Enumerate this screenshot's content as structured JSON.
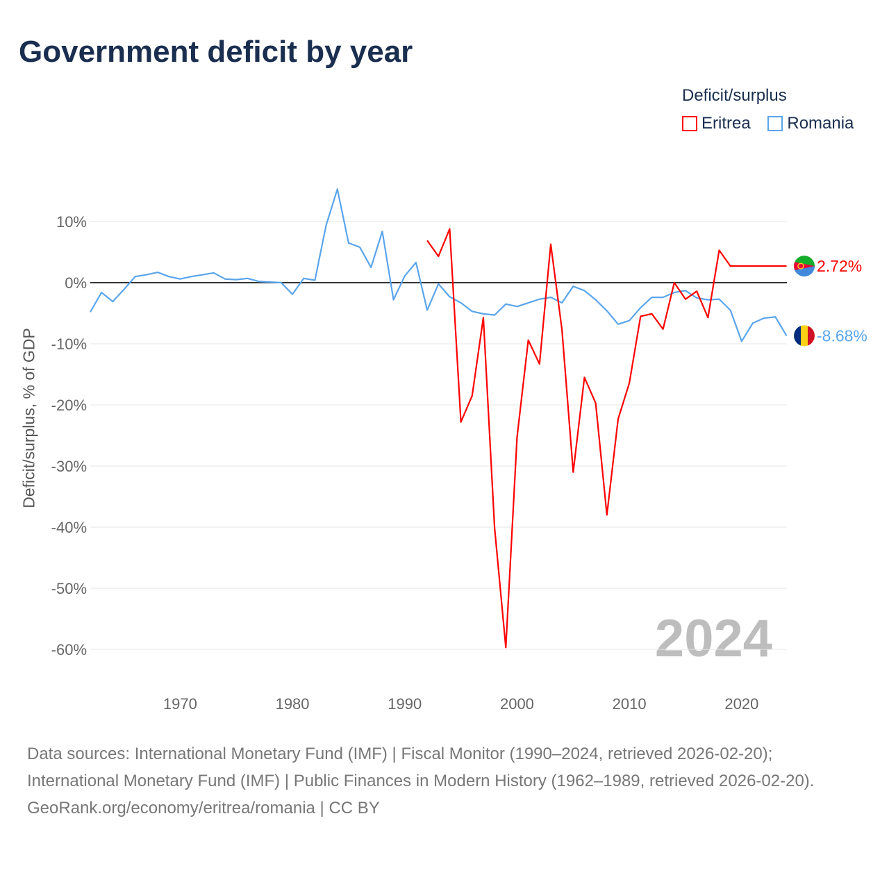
{
  "title": "Government deficit by year",
  "legend": {
    "title": "Deficit/surplus",
    "items": [
      {
        "name": "Eritrea",
        "color": "#ff0000"
      },
      {
        "name": "Romania",
        "color": "#5aa5ec"
      }
    ]
  },
  "footer": {
    "sources": "Data sources: International Monetary Fund (IMF) | Fiscal Monitor (1990–2024, retrieved 2026-02-20); International Monetary Fund (IMF) | Public Finances in Modern History (1962–1989, retrieved 2026-02-20).",
    "credit": "GeoRank.org/economy/eritrea/romania | CC BY"
  },
  "chart_data": {
    "type": "line",
    "title": "Government deficit by year",
    "ylabel": "Deficit/surplus, % of GDP",
    "year_watermark": "2024",
    "xlim": [
      1962,
      2024
    ],
    "ylim": [
      -65,
      17
    ],
    "xticks": [
      1970,
      1980,
      1990,
      2000,
      2010,
      2020
    ],
    "yticks": [
      10,
      0,
      -10,
      -20,
      -30,
      -40,
      -50,
      -60
    ],
    "ytick_labels": [
      "10%",
      "0%",
      "-10%",
      "-20%",
      "-30%",
      "-40%",
      "-50%",
      "-60%"
    ],
    "series": [
      {
        "name": "Romania",
        "color": "#5aa5ec",
        "end_label": "-8.68%",
        "start_year": 1962,
        "values": [
          -4.8,
          -1.6,
          -3.1,
          -1.1,
          1.0,
          1.3,
          1.7,
          1.0,
          0.6,
          1.0,
          1.3,
          1.6,
          0.6,
          0.5,
          0.7,
          0.2,
          0.1,
          0.0,
          -1.9,
          0.7,
          0.4,
          9.4,
          15.3,
          6.5,
          5.8,
          2.5,
          8.4,
          -2.8,
          1.1,
          3.3,
          -4.5,
          -0.2,
          -2.3,
          -3.3,
          -4.7,
          -5.1,
          -5.3,
          -3.5,
          -3.9,
          -3.3,
          -2.7,
          -2.4,
          -3.3,
          -0.6,
          -1.3,
          -2.8,
          -4.6,
          -6.8,
          -6.2,
          -4.1,
          -2.4,
          -2.4,
          -1.6,
          -1.3,
          -2.5,
          -2.8,
          -2.7,
          -4.5,
          -9.6,
          -6.6,
          -5.8,
          -5.6,
          -8.68
        ]
      },
      {
        "name": "Eritrea",
        "color": "#ff0000",
        "end_label": "2.72%",
        "start_year": 1992,
        "values": [
          6.9,
          4.3,
          8.8,
          -22.8,
          -18.5,
          -5.7,
          -40.1,
          -59.7,
          -25.3,
          -9.4,
          -13.3,
          6.3,
          -7.7,
          -31.0,
          -15.5,
          -19.7,
          -38.0,
          -22.3,
          -16.4,
          -5.5,
          -5.1,
          -7.6,
          0.0,
          -2.7,
          -1.4,
          -5.7,
          5.3,
          2.72,
          2.72,
          2.72,
          2.72,
          2.72,
          2.72
        ]
      }
    ]
  }
}
